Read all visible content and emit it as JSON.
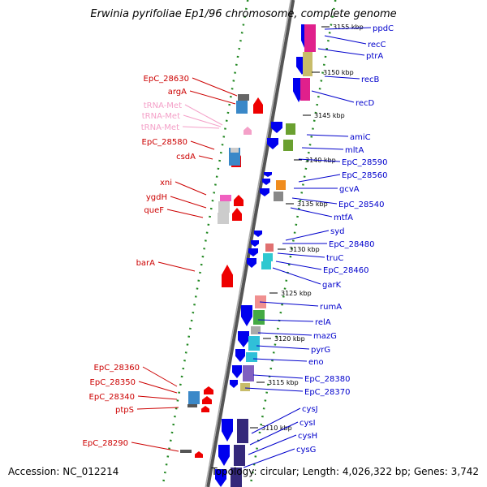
{
  "title": "Erwinia pyrifoliae Ep1/96 chromosome, complete genome",
  "footer": {
    "accession": "Accession: NC_012214",
    "summary": "Topology: circular; Length: 4,026,322 bp; Genes: 3,742"
  },
  "colors": {
    "forward_label": "#0000cc",
    "reverse_label": "#cc0000",
    "rna_label": "#f4a0c8",
    "forward_gene": "#0000ee",
    "reverse_gene": "#ee0000",
    "rna_gene": "#f4a0c8",
    "backbone": "#888888",
    "dots": "#228822"
  },
  "kbp_ticks": [
    "3155 kbp",
    "3150 kbp",
    "3145 kbp",
    "3140 kbp",
    "3135 kbp",
    "3130 kbp",
    "3125 kbp",
    "3120 kbp",
    "3115 kbp",
    "3110 kbp"
  ],
  "right_labels": [
    "ppdC",
    "recC",
    "ptrA",
    "recB",
    "recD",
    "amiC",
    "mltA",
    "EpC_28590",
    "EpC_28560",
    "gcvA",
    "EpC_28540",
    "mtfA",
    "syd",
    "EpC_28480",
    "truC",
    "EpC_28460",
    "garK",
    "rumA",
    "relA",
    "mazG",
    "pyrG",
    "eno",
    "EpC_28380",
    "EpC_28370",
    "cysJ",
    "cysI",
    "cysH",
    "cysG"
  ],
  "left_labels": [
    "EpC_28630",
    "argA",
    "tRNA-Met",
    "tRNA-Met",
    "tRNA-Met",
    "EpC_28580",
    "csdA",
    "xni",
    "ygdH",
    "queF",
    "barA",
    "EpC_28360",
    "EpC_28350",
    "EpC_28340",
    "ptpS",
    "EpC_28290"
  ],
  "left_label_kinds": [
    "gene",
    "gene",
    "rna",
    "rna",
    "rna",
    "gene",
    "gene",
    "gene",
    "gene",
    "gene",
    "gene",
    "gene",
    "gene",
    "gene",
    "gene",
    "gene"
  ]
}
